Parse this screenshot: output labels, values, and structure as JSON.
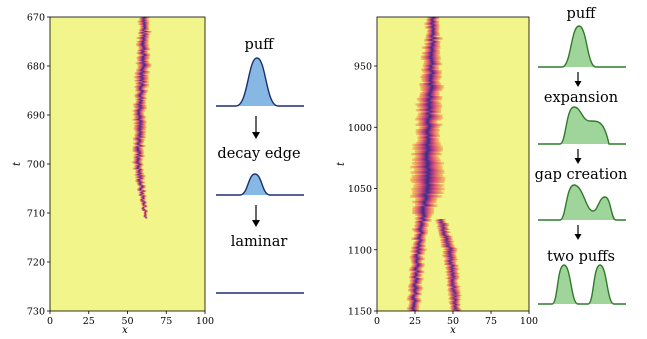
{
  "left_panel": {
    "xlabel": "x",
    "ylabel": "t",
    "xticks": [
      "0",
      "25",
      "50",
      "75",
      "100"
    ],
    "yticks": [
      "670",
      "680",
      "690",
      "700",
      "710",
      "720",
      "730"
    ]
  },
  "left_diagram": {
    "labels": [
      "puff",
      "decay edge",
      "laminar"
    ],
    "fill": "#86b8e3",
    "stroke": "#1a2f6e"
  },
  "right_panel": {
    "xlabel": "x",
    "ylabel": "t",
    "xticks": [
      "0",
      "25",
      "50",
      "75",
      "100"
    ],
    "yticks": [
      "950",
      "1000",
      "1050",
      "1100",
      "1150"
    ]
  },
  "right_diagram": {
    "labels": [
      "puff",
      "expansion",
      "gap creation",
      "two puffs"
    ],
    "fill": "#9fd49a",
    "stroke": "#2f7a2a"
  },
  "colors": {
    "background_laminar": "#f2f58a",
    "turbulent_dark": "#3b2a8a",
    "turbulent_mid": "#d4487a",
    "turbulent_light": "#f6a847"
  },
  "chart_data": [
    {
      "type": "heatmap",
      "xlabel": "x",
      "ylabel": "t",
      "xlim": [
        0,
        100
      ],
      "ylim": [
        730,
        670
      ],
      "series": [
        {
          "t": [
            670,
            680,
            690,
            700,
            705,
            711
          ],
          "x_center": [
            61,
            60,
            58,
            57,
            59,
            62
          ],
          "width": [
            6,
            8,
            7,
            6,
            4,
            2
          ]
        }
      ]
    },
    {
      "type": "heatmap",
      "xlabel": "x",
      "ylabel": "t",
      "xlim": [
        0,
        100
      ],
      "ylim": [
        1150,
        910
      ],
      "series": [
        {
          "t": [
            910,
            950,
            1000,
            1050,
            1075,
            1100,
            1150
          ],
          "x_center": [
            37,
            36,
            34,
            33,
            30,
            27,
            24
          ],
          "width": [
            8,
            12,
            16,
            20,
            10,
            8,
            8
          ]
        },
        {
          "t": [
            1075,
            1100,
            1150
          ],
          "x_center": [
            42,
            48,
            52
          ],
          "width": [
            6,
            8,
            6
          ]
        }
      ]
    }
  ]
}
